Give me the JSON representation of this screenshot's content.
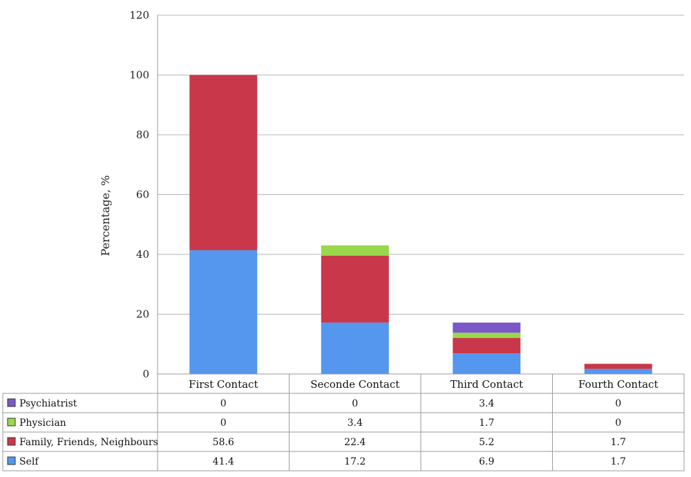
{
  "chart_data": {
    "type": "bar",
    "stacked": true,
    "categories": [
      "First Contact",
      "Seconde Contact",
      "Third Contact",
      "Fourth Contact"
    ],
    "series": [
      {
        "name": "Self",
        "values": [
          41.4,
          17.2,
          6.9,
          1.7
        ],
        "color": "#5596ee"
      },
      {
        "name": "Family, Friends, Neighbours",
        "values": [
          58.6,
          22.4,
          5.2,
          1.7
        ],
        "color": "#c8384a"
      },
      {
        "name": "Physician",
        "values": [
          0,
          3.4,
          1.7,
          0
        ],
        "color": "#99d84a"
      },
      {
        "name": "Psychiatrist",
        "values": [
          0,
          0,
          3.4,
          0
        ],
        "color": "#7a58c8"
      }
    ],
    "table_values": {
      "Psychiatrist": [
        "0",
        "0",
        "3.4",
        "0"
      ],
      "Physician": [
        "0",
        "3.4",
        "1.7",
        "0"
      ],
      "Family, Friends, Neighbours": [
        "58.6",
        "22.4",
        "5.2",
        "1.7"
      ],
      "Self": [
        "41.4",
        "17.2",
        "6.9",
        "1.7"
      ]
    },
    "table_order": [
      "Psychiatrist",
      "Physician",
      "Family, Friends, Neighbours",
      "Self"
    ],
    "ylabel": "Percentage, %",
    "ylim": [
      0,
      120
    ],
    "yticks": [
      "0",
      "20",
      "40",
      "60",
      "80",
      "100",
      "120"
    ],
    "grid": true,
    "legend": "data-table-below"
  }
}
